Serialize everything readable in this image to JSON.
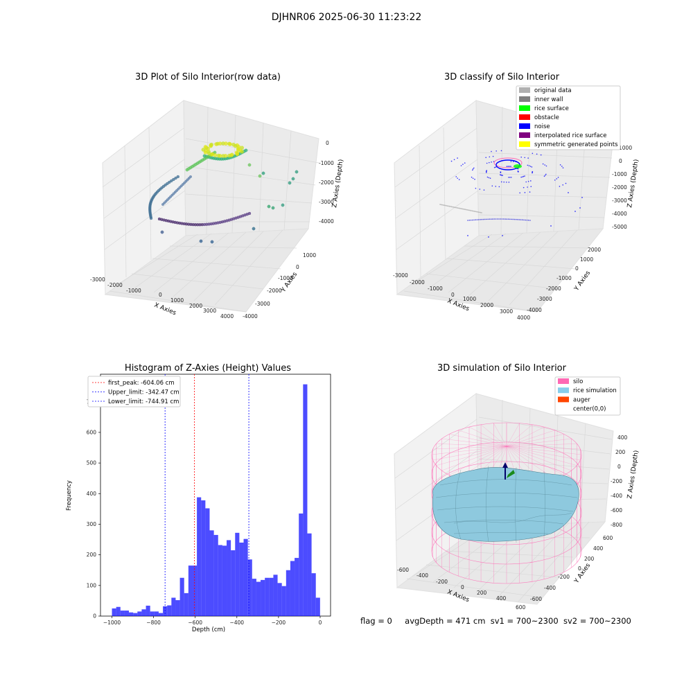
{
  "suptitle": "DJHNR06 2025-06-30 11:23:22",
  "panels": {
    "raw": {
      "title": "3D Plot of Silo Interior(row data)",
      "xlabel": "X Axies",
      "ylabel": "Y Axies",
      "zlabel": "Z Axies (Depth)",
      "xticks": [
        "-3000",
        "-2000",
        "-1000",
        "0",
        "1000",
        "2000",
        "3000",
        "4000"
      ],
      "yticks": [
        "-4000",
        "-3000",
        "-2000",
        "-1000",
        "0",
        "1000"
      ],
      "zticks": [
        "0",
        "-1000",
        "-2000",
        "-3000",
        "-4000"
      ]
    },
    "classify": {
      "title": "3D classify of Silo Interior",
      "xlabel": "X Axies",
      "ylabel": "Y Axies",
      "zlabel": "Z Axies (Depth)",
      "xticks": [
        "-3000",
        "-2000",
        "-1000",
        "0",
        "1000",
        "2000",
        "3000",
        "4000"
      ],
      "yticks": [
        "-4000",
        "-3000",
        "-2000",
        "-1000",
        "0",
        "1000",
        "2000"
      ],
      "zticks": [
        "1000",
        "0",
        "-1000",
        "-2000",
        "-3000",
        "-4000",
        "-5000"
      ],
      "legend": [
        {
          "label": "original data",
          "color": "#b0b0b0"
        },
        {
          "label": "inner wall",
          "color": "#808080"
        },
        {
          "label": "rice surface",
          "color": "#00ff00"
        },
        {
          "label": "obstacle",
          "color": "#ff0000"
        },
        {
          "label": "noise",
          "color": "#0000ff"
        },
        {
          "label": "interpolated rice surface",
          "color": "#800080"
        },
        {
          "label": "symmetric generated points",
          "color": "#ffff00"
        }
      ]
    },
    "simulation": {
      "title": "3D simulation of Silo Interior",
      "xlabel": "X Axies",
      "ylabel": "Y Axies",
      "zlabel": "Z Axies (Depth)",
      "xticks": [
        "-600",
        "-400",
        "-200",
        "0",
        "200",
        "400",
        "600"
      ],
      "yticks": [
        "-600",
        "-400",
        "-200",
        "0",
        "200",
        "400",
        "600"
      ],
      "zticks": [
        "400",
        "200",
        "0",
        "-200",
        "-400",
        "-600",
        "-800"
      ],
      "legend": [
        {
          "label": "silo",
          "color": "#ff69b4"
        },
        {
          "label": "rice simulation",
          "color": "#87ceeb"
        },
        {
          "label": "auger",
          "color": "#ff4500"
        },
        {
          "label": "center(0,0)",
          "color": "#ffffff"
        }
      ]
    }
  },
  "chart_data": {
    "type": "bar",
    "title": "Histogram of Z-Axies (Height) Values",
    "xlabel": "Depth (cm)",
    "ylabel": "Frequency",
    "xlim": [
      -1055,
      50
    ],
    "ylim": [
      0,
      790
    ],
    "xticks": [
      -1000,
      -800,
      -600,
      -400,
      -200,
      0
    ],
    "yticks": [
      0,
      100,
      200,
      300,
      400,
      500,
      600,
      700
    ],
    "bin_width": 20.4,
    "bin_starts": [
      -1000,
      -979.6,
      -959.2,
      -938.8,
      -918.4,
      -898,
      -877.6,
      -857.2,
      -836.8,
      -816.4,
      -796,
      -775.6,
      -755.2,
      -734.8,
      -714.4,
      -694,
      -673.6,
      -653.2,
      -632.8,
      -612.4,
      -592,
      -571.6,
      -551.2,
      -530.8,
      -510.4,
      -490,
      -469.6,
      -449.2,
      -428.8,
      -408.4,
      -388,
      -367.6,
      -347.2,
      -326.8,
      -306.4,
      -286,
      -265.6,
      -245.2,
      -224.8,
      -204.4,
      -184,
      -163.6,
      -143.2,
      -122.8,
      -102.4,
      -82,
      -61.6,
      -41.2,
      -20.8
    ],
    "values": [
      25,
      30,
      18,
      18,
      12,
      10,
      15,
      22,
      34,
      15,
      15,
      10,
      32,
      35,
      60,
      52,
      125,
      75,
      165,
      165,
      388,
      378,
      352,
      280,
      265,
      232,
      230,
      248,
      215,
      272,
      240,
      252,
      185,
      122,
      112,
      118,
      125,
      125,
      135,
      108,
      98,
      150,
      180,
      190,
      335,
      757,
      270,
      140,
      60
    ],
    "vlines": [
      {
        "label": "first_peak: -604.06 cm",
        "x": -604.06,
        "color": "#ff0000"
      },
      {
        "label": "Upper_limit: -342.47 cm",
        "x": -342.47,
        "color": "#0000ff"
      },
      {
        "label": "Lower_limit: -744.91 cm",
        "x": -744.91,
        "color": "#0000ff"
      }
    ],
    "bar_color": "#0000ff",
    "bar_alpha": 0.7
  },
  "footer": {
    "flag": "flag = 0",
    "avg": "avgDepth = 471 cm",
    "sv1": "sv1 = 700~2300",
    "sv2": "sv2 = 700~2300"
  }
}
